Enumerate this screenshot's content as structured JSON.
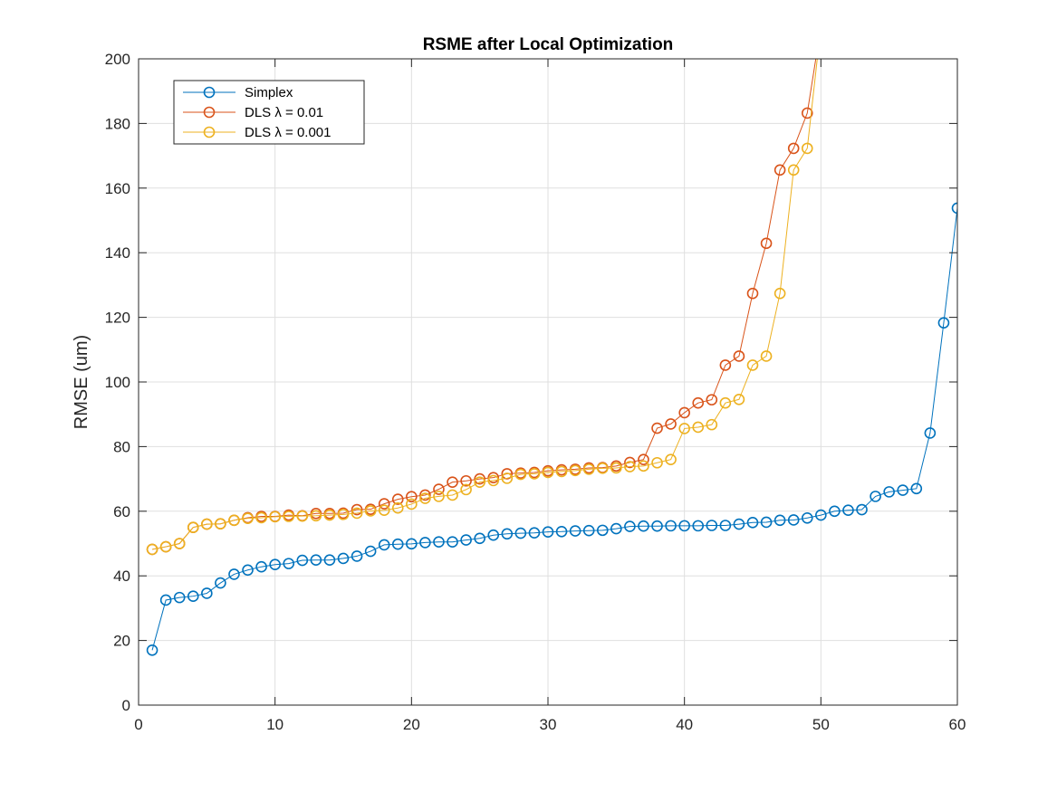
{
  "chart_data": {
    "type": "line",
    "title": "RSME after Local Optimization",
    "xlabel": "",
    "ylabel": "RMSE (um)",
    "xlim": [
      0,
      60
    ],
    "ylim": [
      0,
      200
    ],
    "xticks": [
      0,
      10,
      20,
      30,
      40,
      50,
      60
    ],
    "yticks": [
      0,
      20,
      40,
      60,
      80,
      100,
      120,
      140,
      160,
      180,
      200
    ],
    "grid": true,
    "legend_position": "top-left",
    "marker": "circle",
    "series": [
      {
        "name": "Simplex",
        "color": "#0072BD",
        "x": [
          1,
          2,
          3,
          4,
          5,
          6,
          7,
          8,
          9,
          10,
          11,
          12,
          13,
          14,
          15,
          16,
          17,
          18,
          19,
          20,
          21,
          22,
          23,
          24,
          25,
          26,
          27,
          28,
          29,
          30,
          31,
          32,
          33,
          34,
          35,
          36,
          37,
          38,
          39,
          40,
          41,
          42,
          43,
          44,
          45,
          46,
          47,
          48,
          49,
          50,
          51,
          52,
          53,
          54,
          55,
          56,
          57,
          58,
          59,
          60
        ],
        "y": [
          17,
          32.5,
          33.3,
          33.7,
          34.6,
          37.8,
          40.5,
          41.8,
          42.8,
          43.5,
          43.8,
          44.8,
          44.9,
          44.9,
          45.4,
          46.1,
          47.6,
          49.6,
          49.8,
          49.9,
          50.3,
          50.5,
          50.5,
          51.1,
          51.6,
          52.6,
          53,
          53.2,
          53.3,
          53.6,
          53.7,
          53.9,
          54,
          54.1,
          54.6,
          55.3,
          55.4,
          55.4,
          55.5,
          55.5,
          55.5,
          55.6,
          55.6,
          56,
          56.5,
          56.6,
          57.2,
          57.3,
          57.9,
          58.8,
          60,
          60.3,
          60.5,
          64.6,
          66,
          66.5,
          67,
          84.2,
          118.3,
          153.8
        ]
      },
      {
        "name": "DLS λ = 0.01",
        "color": "#D95319",
        "x": [
          1,
          2,
          3,
          4,
          5,
          6,
          7,
          8,
          9,
          10,
          11,
          12,
          13,
          14,
          15,
          16,
          17,
          18,
          19,
          20,
          21,
          22,
          23,
          24,
          25,
          26,
          27,
          28,
          29,
          30,
          31,
          32,
          33,
          34,
          35,
          36,
          37,
          38,
          39,
          40,
          41,
          42,
          43,
          44,
          45,
          46,
          47,
          48,
          49,
          50
        ],
        "y": [
          48.2,
          49,
          50,
          55,
          56,
          56.1,
          57.2,
          58,
          58.4,
          58.4,
          58.8,
          58.6,
          59.3,
          59.3,
          59.4,
          60.5,
          60.6,
          62.3,
          63.7,
          64.5,
          65,
          66.8,
          69,
          69.4,
          70,
          70.4,
          71.6,
          71.8,
          72,
          72.5,
          72.8,
          73,
          73.4,
          73.5,
          74,
          75.1,
          76,
          85.7,
          87,
          90.5,
          93.5,
          94.5,
          105.2,
          108,
          127.4,
          142.9,
          165.6,
          172.3,
          183.2,
          210
        ]
      },
      {
        "name": "DLS λ = 0.001",
        "color": "#EDB120",
        "x": [
          1,
          2,
          3,
          4,
          5,
          6,
          7,
          8,
          9,
          10,
          11,
          12,
          13,
          14,
          15,
          16,
          17,
          18,
          19,
          20,
          21,
          22,
          23,
          24,
          25,
          26,
          27,
          28,
          29,
          30,
          31,
          32,
          33,
          34,
          35,
          36,
          37,
          38,
          39,
          40,
          41,
          42,
          43,
          44,
          45,
          46,
          47,
          48,
          49,
          50
        ],
        "y": [
          48.2,
          49,
          50,
          55,
          56,
          56.1,
          57.2,
          57.8,
          58,
          58.3,
          58.4,
          58.5,
          58.6,
          58.8,
          59,
          59.4,
          60.1,
          60.3,
          61,
          62.2,
          64,
          64.6,
          65,
          66.7,
          69,
          69.5,
          70.2,
          71.4,
          71.6,
          72,
          72.3,
          72.6,
          73,
          73.3,
          73.4,
          73.8,
          74,
          75,
          76,
          85.6,
          86,
          86.8,
          93.5,
          94.6,
          105.2,
          108,
          127.4,
          165.6,
          172.3,
          210
        ]
      }
    ]
  }
}
